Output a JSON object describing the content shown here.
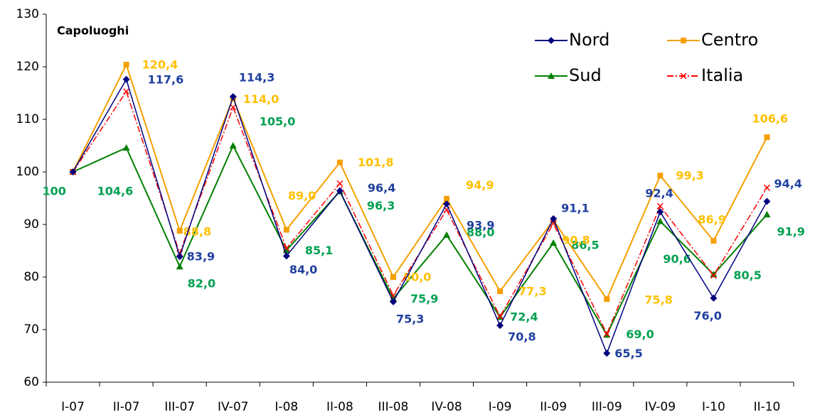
{
  "chart_data": {
    "type": "line",
    "title": "Capoluoghi",
    "categories": [
      "I-07",
      "II-07",
      "III-07",
      "IV-07",
      "I-08",
      "II-08",
      "III-08",
      "IV-08",
      "I-09",
      "II-09",
      "III-09",
      "IV-09",
      "I-10",
      "II-10"
    ],
    "ylim": [
      60,
      130
    ],
    "yticks": [
      60,
      70,
      80,
      90,
      100,
      110,
      120,
      130
    ],
    "grid": false,
    "legend": "top-right",
    "series": [
      {
        "name": "Nord",
        "color": "#000080",
        "label_color": "#1f3f9f",
        "marker": "diamond",
        "values": [
          100,
          117.6,
          83.9,
          114.3,
          84.0,
          96.4,
          75.3,
          93.9,
          70.8,
          91.1,
          65.5,
          92.4,
          76.0,
          94.4
        ],
        "value_labels": [
          null,
          "117,6",
          "83,9",
          "114,3",
          "84,0",
          "96,4",
          "75,3",
          "93,9",
          "70,8",
          "91,1",
          "65,5",
          "92,4",
          "76,0",
          "94,4"
        ]
      },
      {
        "name": "Centro",
        "color": "#f5a000",
        "label_color": "#ffc000",
        "marker": "square",
        "values": [
          100,
          120.4,
          88.8,
          114.0,
          89.0,
          101.8,
          80.0,
          94.9,
          77.3,
          90.8,
          75.8,
          99.3,
          86.9,
          106.6
        ],
        "value_labels": [
          null,
          "120,4",
          "88,8",
          "114,0",
          "89,0",
          "101,8",
          "80,0",
          "94,9",
          "77,3",
          "90,8",
          "75,8",
          "99,3",
          "86,9",
          "106,6"
        ]
      },
      {
        "name": "Sud",
        "color": "#008000",
        "label_color": "#00a050",
        "marker": "triangle",
        "values": [
          100,
          104.6,
          82.0,
          105.0,
          85.1,
          96.3,
          75.9,
          88.0,
          72.4,
          86.5,
          69.0,
          90.6,
          80.5,
          91.9
        ],
        "value_labels": [
          null,
          "104,6",
          "82,0",
          "105,0",
          "85,1",
          "96,3",
          "75,9",
          "88,0",
          "72,4",
          "86,5",
          "69,0",
          "90,6",
          "80,5",
          "91,9"
        ]
      },
      {
        "name": "Italia",
        "color": "#ff0000",
        "marker": "x",
        "dash": true,
        "values": [
          100,
          115.3,
          84.5,
          112.3,
          85.5,
          97.8,
          76.5,
          92.8,
          72.5,
          90.2,
          69.2,
          93.5,
          80.3,
          97.0
        ]
      }
    ],
    "annotations": [
      {
        "text": "100",
        "category": 0,
        "series": 2
      }
    ]
  }
}
